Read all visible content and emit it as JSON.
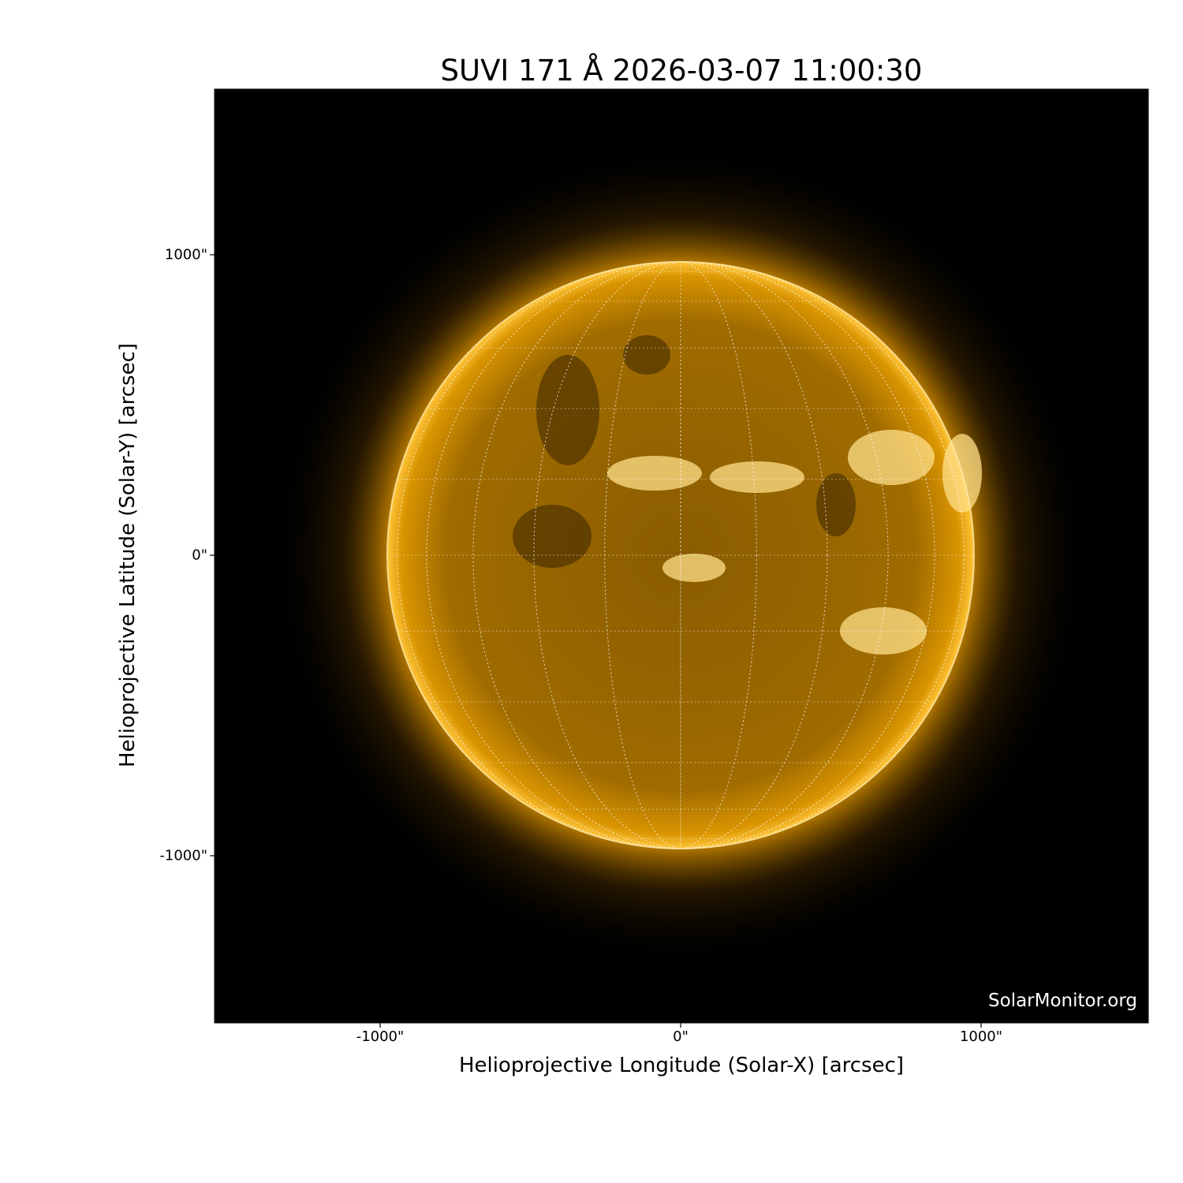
{
  "title": "SUVI 171 Å 2026-03-07 11:00:30",
  "instrument": "SUVI",
  "wavelength": "171 Å",
  "timestamp": "2026-03-07 11:00:30",
  "xlabel": "Helioprojective Longitude (Solar-X) [arcsec]",
  "ylabel": "Helioprojective Latitude (Solar-Y) [arcsec]",
  "x_ticks": [
    "-1000\"",
    "0\"",
    "1000\""
  ],
  "y_ticks": [
    "1000\"",
    "0\"",
    "-1000\""
  ],
  "watermark": "SolarMonitor.org",
  "colors": {
    "background": "#000000",
    "sun": "#ffb000",
    "limb": "#ffd24a",
    "grid": "#ffffff"
  }
}
